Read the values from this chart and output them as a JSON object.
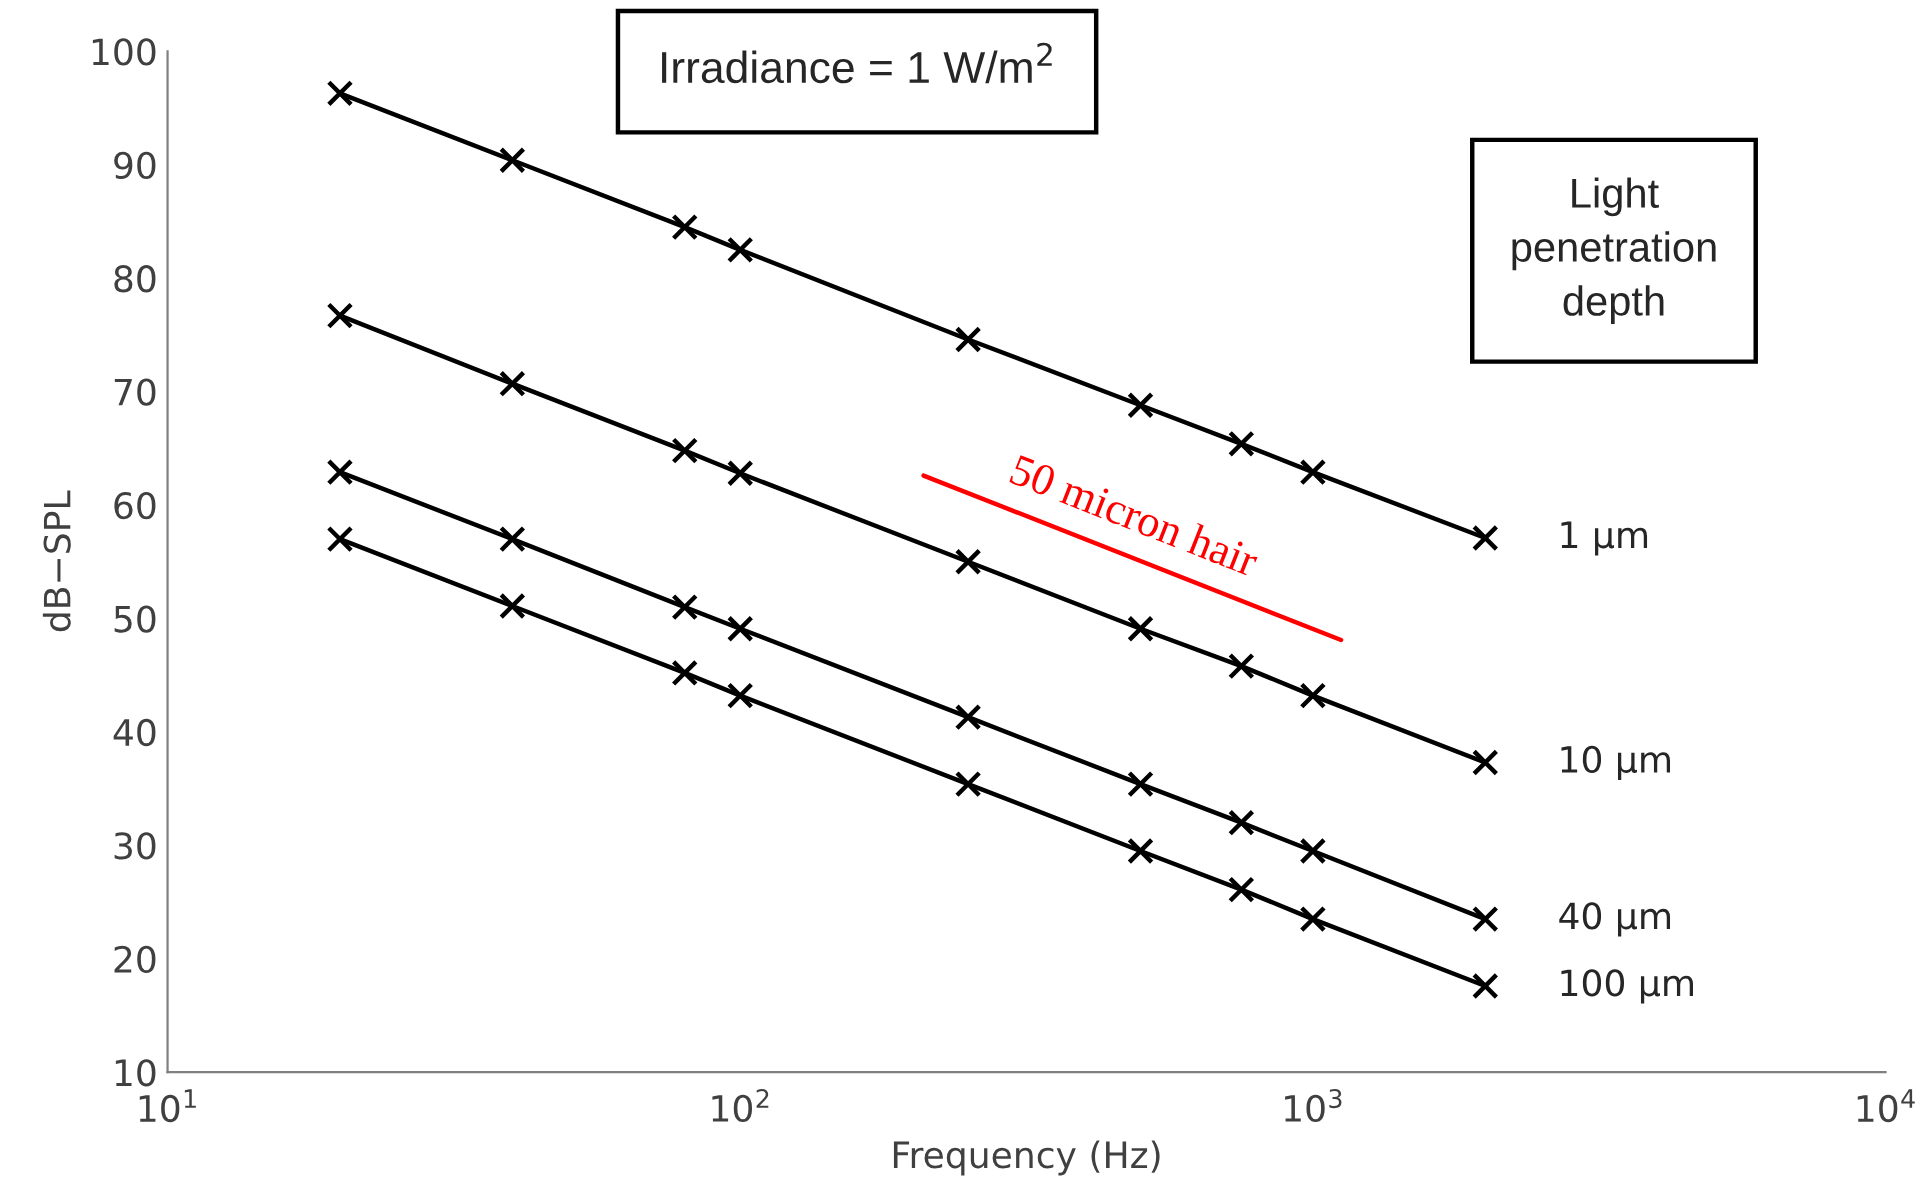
{
  "chart_data": {
    "type": "line",
    "xlabel": "Frequency (Hz)",
    "ylabel": "dB−SPL",
    "annotations": [
      "Irradiance = 1 W/m$^{2}$",
      "Light\npenetration\ndepth"
    ],
    "x": [
      20,
      40,
      80,
      100,
      250,
      500,
      750,
      1000,
      2000
    ],
    "series": [
      {
        "name": "1 μm",
        "color": "#000000",
        "values": [
          96.3,
          90.4,
          84.5,
          82.5,
          74.6,
          68.8,
          65.4,
          62.9,
          57.1
        ]
      },
      {
        "name": "10 μm",
        "color": "#000000",
        "values": [
          76.7,
          70.7,
          64.8,
          62.8,
          55.0,
          49.1,
          45.8,
          43.2,
          37.3
        ]
      },
      {
        "name": "40 μm",
        "color": "#000000",
        "values": [
          62.9,
          57.0,
          51.0,
          49.1,
          41.3,
          35.4,
          32.0,
          29.5,
          23.5
        ]
      },
      {
        "name": "100 μm",
        "color": "#000000",
        "values": [
          57.0,
          51.1,
          45.2,
          43.2,
          35.4,
          29.5,
          26.1,
          23.5,
          17.6
        ]
      },
      {
        "name": "50 micron hair",
        "color": "#ff0000",
        "x": [
          209,
          1120
        ],
        "values": [
          62.6,
          48.1
        ],
        "marker": "none"
      }
    ],
    "log": "x",
    "xlim": [
      10,
      10000
    ],
    "ylim": [
      10,
      100
    ],
    "xticks": [
      {
        "value": 10,
        "label": "10$^{1}$"
      },
      {
        "value": 100,
        "label": "10$^{2}$"
      },
      {
        "value": 1000,
        "label": "10$^{3}$"
      },
      {
        "value": 10000,
        "label": "10$^{4}$"
      }
    ],
    "yticks": [
      10,
      20,
      30,
      40,
      50,
      60,
      70,
      80,
      90,
      100
    ],
    "grid": false,
    "legend": false,
    "marker": "cross",
    "line_style": "solid"
  }
}
